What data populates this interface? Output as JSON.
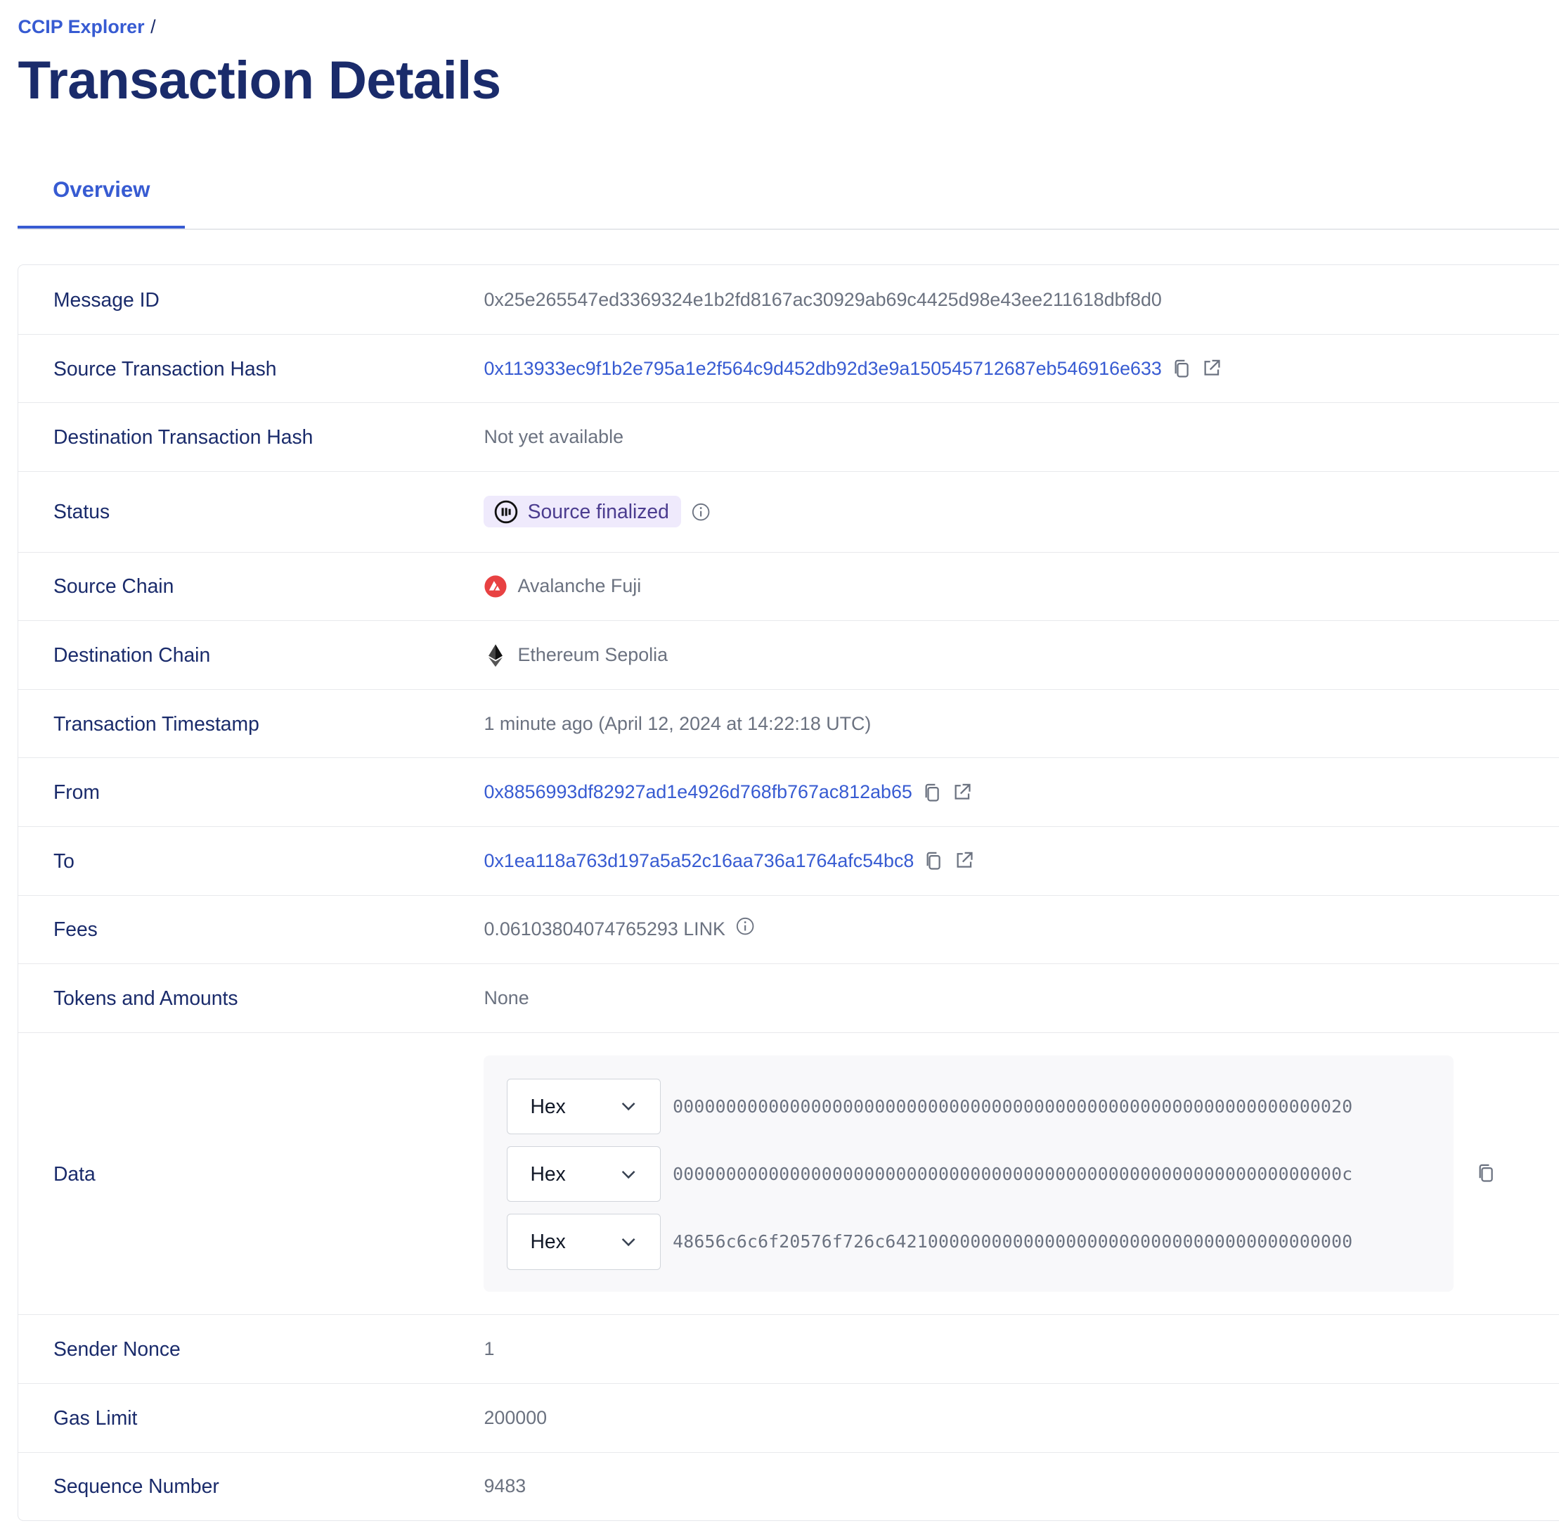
{
  "breadcrumb": {
    "root": "CCIP Explorer",
    "separator": "/"
  },
  "title": "Transaction Details",
  "tabs": [
    {
      "label": "Overview",
      "active": true
    }
  ],
  "colors": {
    "link": "#375bd2",
    "heading": "#1a2b6b",
    "badge_bg": "#efeafc",
    "avalanche": "#e84142"
  },
  "rows": {
    "message_id": {
      "label": "Message ID",
      "value": "0x25e265547ed3369324e1b2fd8167ac30929ab69c4425d98e43ee211618dbf8d0"
    },
    "source_tx": {
      "label": "Source Transaction Hash",
      "value": "0x113933ec9f1b2e795a1e2f564c9d452db92d3e9a150545712687eb546916e633"
    },
    "dest_tx": {
      "label": "Destination Transaction Hash",
      "value": "Not yet available"
    },
    "status": {
      "label": "Status",
      "value": "Source finalized"
    },
    "source_chain": {
      "label": "Source Chain",
      "value": "Avalanche Fuji",
      "icon": "avalanche-icon"
    },
    "dest_chain": {
      "label": "Destination Chain",
      "value": "Ethereum Sepolia",
      "icon": "ethereum-icon"
    },
    "timestamp": {
      "label": "Transaction Timestamp",
      "value": "1 minute ago (April 12, 2024 at 14:22:18 UTC)"
    },
    "from": {
      "label": "From",
      "value": "0x8856993df82927ad1e4926d768fb767ac812ab65"
    },
    "to": {
      "label": "To",
      "value": "0x1ea118a763d197a5a52c16aa736a1764afc54bc8"
    },
    "fees": {
      "label": "Fees",
      "value": "0.06103804074765293 LINK"
    },
    "tokens": {
      "label": "Tokens and Amounts",
      "value": "None"
    },
    "data": {
      "label": "Data",
      "lines": [
        {
          "format": "Hex",
          "value": "0000000000000000000000000000000000000000000000000000000000000020"
        },
        {
          "format": "Hex",
          "value": "000000000000000000000000000000000000000000000000000000000000000c"
        },
        {
          "format": "Hex",
          "value": "48656c6c6f20576f726c64210000000000000000000000000000000000000000"
        }
      ]
    },
    "nonce": {
      "label": "Sender Nonce",
      "value": "1"
    },
    "gas": {
      "label": "Gas Limit",
      "value": "200000"
    },
    "sequence": {
      "label": "Sequence Number",
      "value": "9483"
    }
  }
}
